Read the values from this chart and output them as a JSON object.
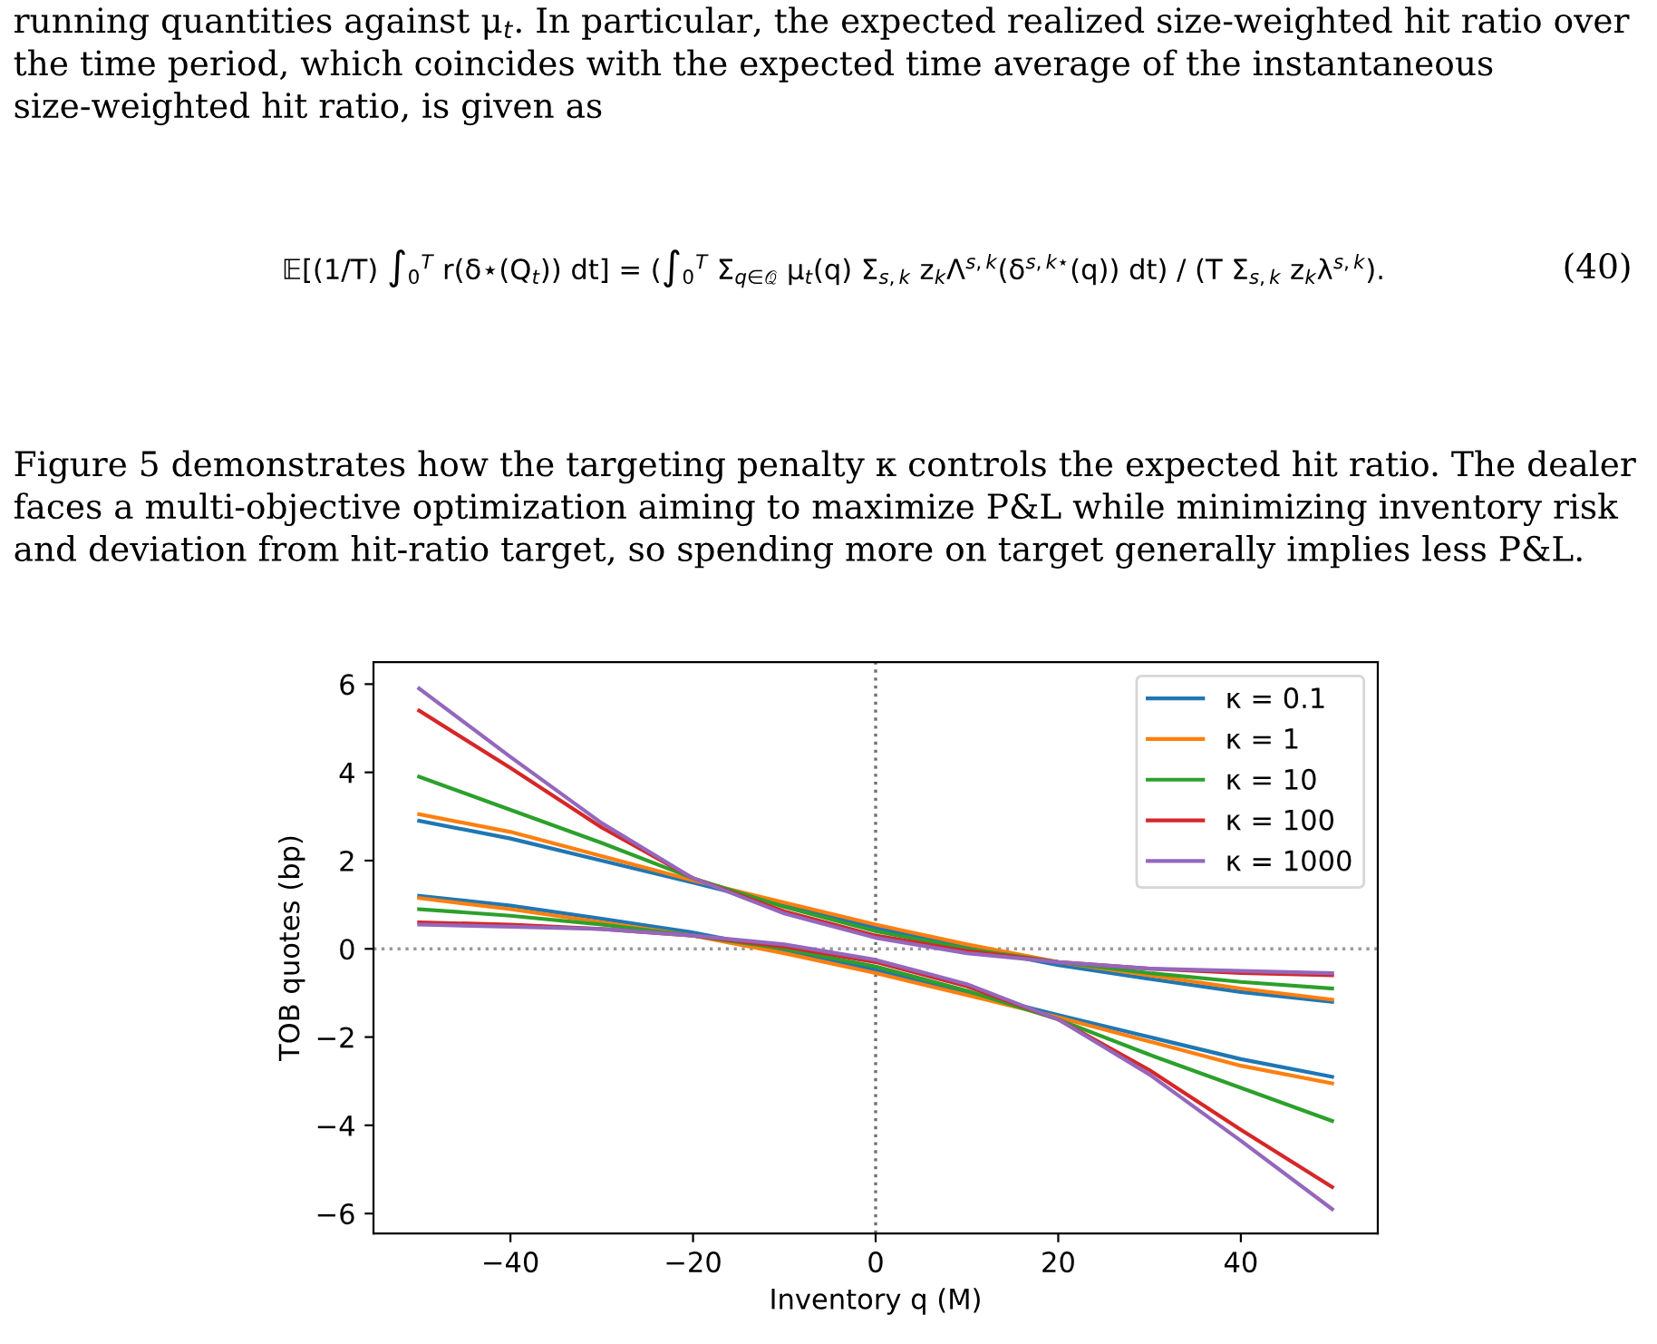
{
  "chart_data": {
    "type": "line",
    "annotations": [
      "running quantities against μ$_{t}$. In particular, the expected realized size-weighted hit ratio over the time period, which coincides with the expected time average of the instantaneous size-weighted hit ratio, is given as",
      "𝔼[(1/T) ∫$_{0}$$^{T}$ r(δ⋆(Q$_{t}$)) dt] = (∫$_{0}$$^{T}$ Σ$_{q∈𝒬}$ μ$_{t}$(q) Σ$_{s,k}$ z$_{k}$Λ$^{s,k}$(δ$^{s,k⋆}$(q)) dt) / (T Σ$_{s,k}$ z$_{k}$λ$^{s,k}$).",
      "(40)",
      "Figure 5 demonstrates how the targeting penalty κ controls the expected hit ratio. The dealer faces a multi-objective optimization aiming to maximize P&L while minimizing inventory risk and deviation from hit-ratio target, so spending more on target generally implies less P&L."
    ],
    "xlabel": "Inventory q (M)",
    "ylabel": "TOB quotes (bp)",
    "xlim": [
      -55,
      55
    ],
    "ylim": [
      -6.45,
      6.5
    ],
    "xticks": [
      {
        "value": -40,
        "label": "−40"
      },
      {
        "value": -20,
        "label": "−20"
      },
      0,
      20,
      40
    ],
    "yticks": [
      {
        "value": -6,
        "label": "−6"
      },
      {
        "value": -4,
        "label": "−4"
      },
      {
        "value": -2,
        "label": "−2"
      },
      0,
      2,
      4,
      6
    ],
    "x": [
      -50,
      -40,
      -30,
      -20,
      -10,
      0,
      10,
      20,
      30,
      40,
      50
    ],
    "ref_lines": [
      {
        "axis": "x",
        "value": 0,
        "color": "#707070",
        "line_style": "dotted"
      },
      {
        "axis": "y",
        "value": 0,
        "color": "#999999",
        "line_style": "dotted"
      }
    ],
    "legend": "top right",
    "grid": false,
    "line_style": "solid",
    "series": [
      {
        "name": "κ = 0.1",
        "color": "#1f77b4",
        "values": [
          2.9,
          2.5,
          2.0,
          1.5,
          0.98,
          0.48,
          0.03,
          -0.37,
          -0.68,
          -0.98,
          -1.2
        ]
      },
      {
        "name": "κ = 1",
        "color": "#ff7f0e",
        "values": [
          3.05,
          2.65,
          2.1,
          1.55,
          1.05,
          0.55,
          0.1,
          -0.3,
          -0.6,
          -0.9,
          -1.15
        ]
      },
      {
        "name": "κ = 10",
        "color": "#2ca02c",
        "values": [
          3.9,
          3.15,
          2.4,
          1.6,
          0.95,
          0.4,
          0.0,
          -0.3,
          -0.55,
          -0.75,
          -0.9
        ]
      },
      {
        "name": "κ = 100",
        "color": "#d62728",
        "values": [
          5.4,
          4.1,
          2.75,
          1.6,
          0.85,
          0.3,
          -0.05,
          -0.3,
          -0.45,
          -0.55,
          -0.6
        ]
      },
      {
        "name": "κ = 1000",
        "color": "#9467bd",
        "values": [
          5.9,
          4.35,
          2.85,
          1.6,
          0.8,
          0.25,
          -0.1,
          -0.3,
          -0.45,
          -0.5,
          -0.55
        ]
      },
      {
        "color": "#1f77b4",
        "values": [
          1.2,
          0.98,
          0.68,
          0.37,
          -0.03,
          -0.48,
          -0.98,
          -1.5,
          -2.0,
          -2.5,
          -2.9
        ]
      },
      {
        "color": "#ff7f0e",
        "values": [
          1.15,
          0.9,
          0.6,
          0.3,
          -0.1,
          -0.55,
          -1.05,
          -1.55,
          -2.1,
          -2.65,
          -3.05
        ]
      },
      {
        "color": "#2ca02c",
        "values": [
          0.9,
          0.75,
          0.55,
          0.3,
          0.0,
          -0.4,
          -0.95,
          -1.6,
          -2.4,
          -3.15,
          -3.9
        ]
      },
      {
        "color": "#d62728",
        "values": [
          0.6,
          0.55,
          0.45,
          0.3,
          0.05,
          -0.3,
          -0.85,
          -1.6,
          -2.75,
          -4.1,
          -5.4
        ]
      },
      {
        "color": "#9467bd",
        "values": [
          0.55,
          0.5,
          0.45,
          0.3,
          0.1,
          -0.25,
          -0.8,
          -1.6,
          -2.85,
          -4.35,
          -5.9
        ]
      }
    ]
  }
}
